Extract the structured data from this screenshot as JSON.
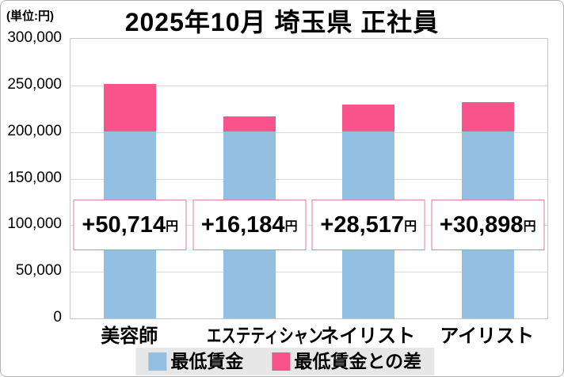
{
  "header": {
    "title": "2025年10月 埼玉県 正社員",
    "unit_label": "(単位:円)"
  },
  "chart_data": {
    "type": "bar",
    "stacked": true,
    "title": "2025年10月 埼玉県 正社員",
    "unit": "円",
    "categories": [
      "美容師",
      "エステティシャン",
      "ネイリスト",
      "アイリスト"
    ],
    "series": [
      {
        "name": "最低賃金",
        "color": "#93BFE3",
        "values": [
          200816,
          200816,
          200816,
          200816
        ]
      },
      {
        "name": "最低賃金との差",
        "color": "#F9538C",
        "values": [
          50714,
          16184,
          28517,
          30898
        ]
      }
    ],
    "totals": [
      251530,
      217000,
      229333,
      231714
    ],
    "annotations": [
      "+50,714",
      "+16,184",
      "+28,517",
      "+30,898"
    ],
    "annotation_suffix": "円",
    "annotation_center_value": 100000,
    "ylim": [
      0,
      300000
    ],
    "ytick_interval": 50000,
    "ytick_labels": [
      "300,000",
      "250,000",
      "200,000",
      "150,000",
      "100,000",
      "50,000",
      "0"
    ],
    "grid": true,
    "legend_position": "bottom",
    "colors": {
      "min_wage_bar": "#93BFE3",
      "diff_bar": "#F9538C",
      "annotation_border": "#d9829f",
      "gridline": "#d9d9d9",
      "legend_background": "#e7e7e7"
    }
  },
  "legend": {
    "items": [
      {
        "label": "最低賃金",
        "color": "#93BFE3"
      },
      {
        "label": "最低賃金との差",
        "color": "#F9538C"
      }
    ]
  }
}
